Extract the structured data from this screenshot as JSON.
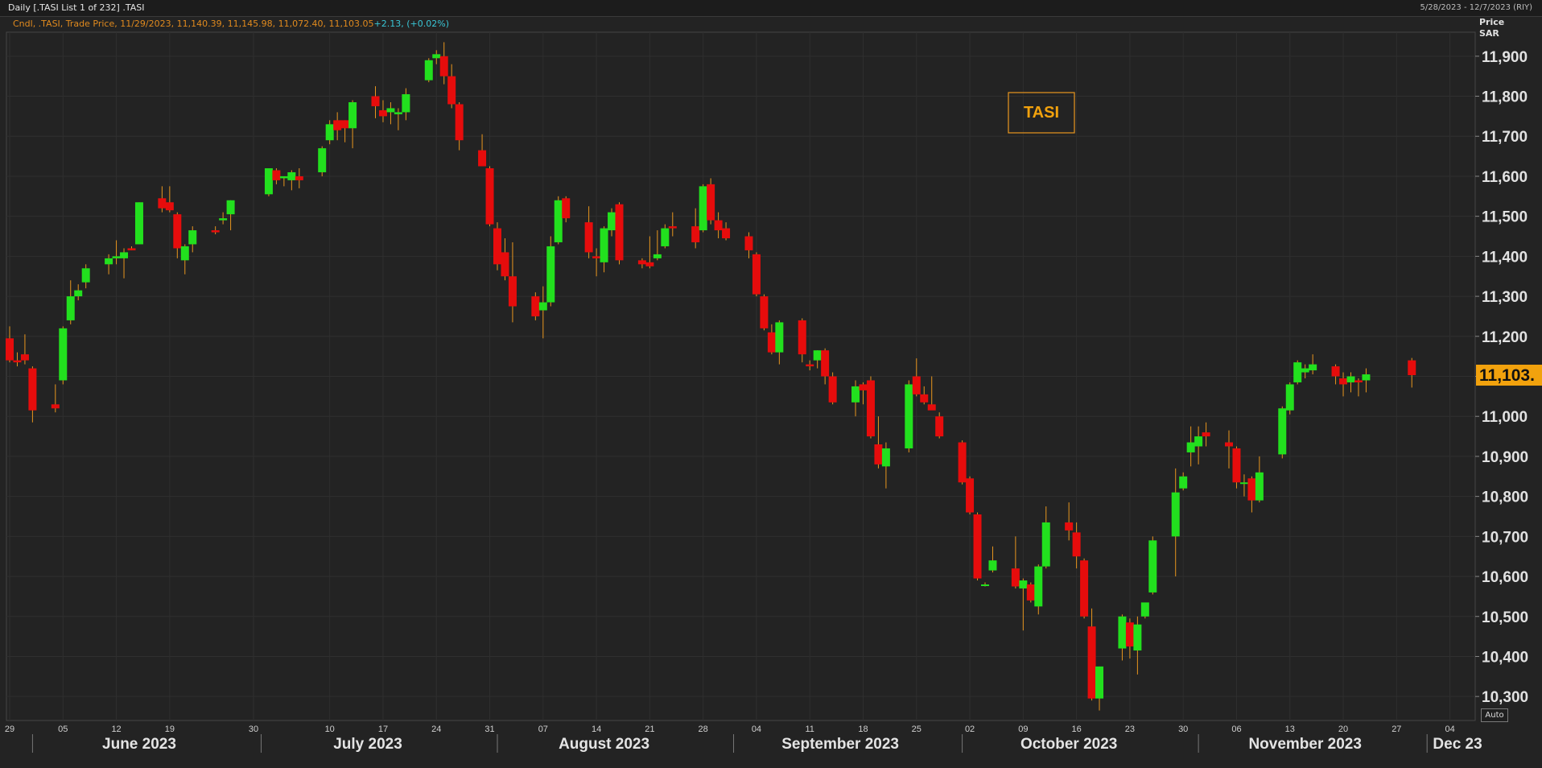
{
  "header": {
    "title": "Daily [.TASI List 1 of 232] .TASI",
    "range": "5/28/2023 - 12/7/2023 (RIY)"
  },
  "legend": {
    "text": "Cndl, .TASI, Trade Price, 11/29/2023, 11,140.39, 11,145.98, 11,072.40, 11,103.05",
    "change": "+2.13, (+0.02%)"
  },
  "yaxis": {
    "label_line1": "Price",
    "label_line2": "SAR"
  },
  "auto_label": "Auto",
  "annotation_box": "TASI",
  "last_price_label": "11,103.",
  "colors": {
    "up": "#22e01e",
    "down": "#e60c0c",
    "wick": "#e8961e",
    "last_price_bg": "#f2a20d"
  },
  "chart_data": {
    "type": "candlestick",
    "ylim": [
      10240,
      11960
    ],
    "yticks": [
      10300,
      10400,
      10500,
      10600,
      10700,
      10800,
      10900,
      11000,
      11100,
      11200,
      11300,
      11400,
      11500,
      11600,
      11700,
      11800,
      11900
    ],
    "ytick_labels": [
      "10,300",
      "10,400",
      "10,500",
      "10,600",
      "10,700",
      "10,800",
      "10,900",
      "11,000",
      "11,100",
      "11,200",
      "11,300",
      "11,400",
      "11,500",
      "11,600",
      "11,700",
      "11,800",
      "11,900"
    ],
    "date_range": [
      "2023-05-29",
      "2023-12-07"
    ],
    "xticks": [
      {
        "date": "2023-05-29",
        "label": "29"
      },
      {
        "date": "2023-06-05",
        "label": "05"
      },
      {
        "date": "2023-06-12",
        "label": "12"
      },
      {
        "date": "2023-06-19",
        "label": "19"
      },
      {
        "date": "2023-06-30",
        "label": "30"
      },
      {
        "date": "2023-07-10",
        "label": "10"
      },
      {
        "date": "2023-07-17",
        "label": "17"
      },
      {
        "date": "2023-07-24",
        "label": "24"
      },
      {
        "date": "2023-07-31",
        "label": "31"
      },
      {
        "date": "2023-08-07",
        "label": "07"
      },
      {
        "date": "2023-08-14",
        "label": "14"
      },
      {
        "date": "2023-08-21",
        "label": "21"
      },
      {
        "date": "2023-08-28",
        "label": "28"
      },
      {
        "date": "2023-09-04",
        "label": "04"
      },
      {
        "date": "2023-09-11",
        "label": "11"
      },
      {
        "date": "2023-09-18",
        "label": "18"
      },
      {
        "date": "2023-09-25",
        "label": "25"
      },
      {
        "date": "2023-10-02",
        "label": "02"
      },
      {
        "date": "2023-10-09",
        "label": "09"
      },
      {
        "date": "2023-10-16",
        "label": "16"
      },
      {
        "date": "2023-10-23",
        "label": "23"
      },
      {
        "date": "2023-10-30",
        "label": "30"
      },
      {
        "date": "2023-11-06",
        "label": "06"
      },
      {
        "date": "2023-11-13",
        "label": "13"
      },
      {
        "date": "2023-11-20",
        "label": "20"
      },
      {
        "date": "2023-11-27",
        "label": "27"
      },
      {
        "date": "2023-12-04",
        "label": "04"
      }
    ],
    "months": [
      {
        "date": "2023-06-15",
        "label": "June 2023"
      },
      {
        "date": "2023-07-15",
        "label": "July 2023"
      },
      {
        "date": "2023-08-15",
        "label": "August 2023"
      },
      {
        "date": "2023-09-15",
        "label": "September 2023"
      },
      {
        "date": "2023-10-15",
        "label": "October 2023"
      },
      {
        "date": "2023-11-15",
        "label": "November 2023"
      },
      {
        "date": "2023-12-05",
        "label": "Dec 23"
      }
    ],
    "month_separators": [
      "2023-06-01",
      "2023-07-01",
      "2023-08-01",
      "2023-09-01",
      "2023-10-01",
      "2023-11-01",
      "2023-12-01"
    ],
    "candles": [
      {
        "d": "2023-05-29",
        "o": 11195,
        "h": 11225,
        "l": 11135,
        "c": 11140
      },
      {
        "d": "2023-05-30",
        "o": 11140,
        "h": 11160,
        "l": 11125,
        "c": 11135
      },
      {
        "d": "2023-05-31",
        "o": 11155,
        "h": 11205,
        "l": 11130,
        "c": 11140
      },
      {
        "d": "2023-06-01",
        "o": 11120,
        "h": 11125,
        "l": 10985,
        "c": 11015
      },
      {
        "d": "2023-06-04",
        "o": 11030,
        "h": 11080,
        "l": 11010,
        "c": 11020
      },
      {
        "d": "2023-06-05",
        "o": 11090,
        "h": 11225,
        "l": 11080,
        "c": 11220
      },
      {
        "d": "2023-06-06",
        "o": 11240,
        "h": 11340,
        "l": 11230,
        "c": 11300
      },
      {
        "d": "2023-06-07",
        "o": 11300,
        "h": 11330,
        "l": 11290,
        "c": 11315
      },
      {
        "d": "2023-06-08",
        "o": 11335,
        "h": 11380,
        "l": 11320,
        "c": 11370
      },
      {
        "d": "2023-06-11",
        "o": 11380,
        "h": 11405,
        "l": 11355,
        "c": 11395
      },
      {
        "d": "2023-06-12",
        "o": 11395,
        "h": 11440,
        "l": 11380,
        "c": 11400
      },
      {
        "d": "2023-06-13",
        "o": 11395,
        "h": 11420,
        "l": 11345,
        "c": 11410
      },
      {
        "d": "2023-06-14",
        "o": 11420,
        "h": 11425,
        "l": 11415,
        "c": 11415
      },
      {
        "d": "2023-06-15",
        "o": 11430,
        "h": 11535,
        "l": 11430,
        "c": 11535
      },
      {
        "d": "2023-06-18",
        "o": 11545,
        "h": 11575,
        "l": 11510,
        "c": 11520
      },
      {
        "d": "2023-06-19",
        "o": 11535,
        "h": 11575,
        "l": 11510,
        "c": 11515
      },
      {
        "d": "2023-06-20",
        "o": 11505,
        "h": 11510,
        "l": 11395,
        "c": 11420
      },
      {
        "d": "2023-06-21",
        "o": 11390,
        "h": 11430,
        "l": 11355,
        "c": 11425
      },
      {
        "d": "2023-06-22",
        "o": 11430,
        "h": 11475,
        "l": 11410,
        "c": 11465
      },
      {
        "d": "2023-06-25",
        "o": 11465,
        "h": 11475,
        "l": 11455,
        "c": 11460
      },
      {
        "d": "2023-06-26",
        "o": 11490,
        "h": 11510,
        "l": 11480,
        "c": 11495
      },
      {
        "d": "2023-06-27",
        "o": 11505,
        "h": 11540,
        "l": 11465,
        "c": 11540
      },
      {
        "d": "2023-07-02",
        "o": 11555,
        "h": 11620,
        "l": 11550,
        "c": 11620
      },
      {
        "d": "2023-07-03",
        "o": 11615,
        "h": 11620,
        "l": 11580,
        "c": 11590
      },
      {
        "d": "2023-07-04",
        "o": 11595,
        "h": 11600,
        "l": 11575,
        "c": 11600
      },
      {
        "d": "2023-07-05",
        "o": 11590,
        "h": 11615,
        "l": 11565,
        "c": 11610
      },
      {
        "d": "2023-07-06",
        "o": 11600,
        "h": 11620,
        "l": 11570,
        "c": 11590
      },
      {
        "d": "2023-07-09",
        "o": 11610,
        "h": 11675,
        "l": 11600,
        "c": 11670
      },
      {
        "d": "2023-07-10",
        "o": 11690,
        "h": 11740,
        "l": 11680,
        "c": 11730
      },
      {
        "d": "2023-07-11",
        "o": 11740,
        "h": 11760,
        "l": 11690,
        "c": 11715
      },
      {
        "d": "2023-07-12",
        "o": 11740,
        "h": 11740,
        "l": 11685,
        "c": 11720
      },
      {
        "d": "2023-07-13",
        "o": 11720,
        "h": 11790,
        "l": 11670,
        "c": 11785
      },
      {
        "d": "2023-07-16",
        "o": 11800,
        "h": 11825,
        "l": 11745,
        "c": 11775
      },
      {
        "d": "2023-07-17",
        "o": 11765,
        "h": 11790,
        "l": 11735,
        "c": 11750
      },
      {
        "d": "2023-07-18",
        "o": 11760,
        "h": 11785,
        "l": 11730,
        "c": 11770
      },
      {
        "d": "2023-07-19",
        "o": 11755,
        "h": 11770,
        "l": 11715,
        "c": 11760
      },
      {
        "d": "2023-07-20",
        "o": 11760,
        "h": 11820,
        "l": 11740,
        "c": 11805
      },
      {
        "d": "2023-07-23",
        "o": 11840,
        "h": 11895,
        "l": 11835,
        "c": 11890
      },
      {
        "d": "2023-07-24",
        "o": 11895,
        "h": 11915,
        "l": 11880,
        "c": 11905
      },
      {
        "d": "2023-07-25",
        "o": 11900,
        "h": 11935,
        "l": 11830,
        "c": 11850
      },
      {
        "d": "2023-07-26",
        "o": 11850,
        "h": 11880,
        "l": 11770,
        "c": 11780
      },
      {
        "d": "2023-07-27",
        "o": 11780,
        "h": 11785,
        "l": 11665,
        "c": 11690
      },
      {
        "d": "2023-07-30",
        "o": 11665,
        "h": 11705,
        "l": 11625,
        "c": 11625
      },
      {
        "d": "2023-07-31",
        "o": 11620,
        "h": 11625,
        "l": 11475,
        "c": 11480
      },
      {
        "d": "2023-08-01",
        "o": 11470,
        "h": 11485,
        "l": 11365,
        "c": 11380
      },
      {
        "d": "2023-08-02",
        "o": 11410,
        "h": 11445,
        "l": 11340,
        "c": 11350
      },
      {
        "d": "2023-08-03",
        "o": 11350,
        "h": 11435,
        "l": 11235,
        "c": 11275
      },
      {
        "d": "2023-08-06",
        "o": 11300,
        "h": 11310,
        "l": 11240,
        "c": 11250
      },
      {
        "d": "2023-08-07",
        "o": 11265,
        "h": 11325,
        "l": 11195,
        "c": 11285
      },
      {
        "d": "2023-08-08",
        "o": 11285,
        "h": 11450,
        "l": 11275,
        "c": 11425
      },
      {
        "d": "2023-08-09",
        "o": 11435,
        "h": 11550,
        "l": 11430,
        "c": 11540
      },
      {
        "d": "2023-08-10",
        "o": 11545,
        "h": 11550,
        "l": 11485,
        "c": 11495
      },
      {
        "d": "2023-08-13",
        "o": 11485,
        "h": 11525,
        "l": 11395,
        "c": 11410
      },
      {
        "d": "2023-08-14",
        "o": 11400,
        "h": 11420,
        "l": 11350,
        "c": 11395
      },
      {
        "d": "2023-08-15",
        "o": 11385,
        "h": 11475,
        "l": 11360,
        "c": 11470
      },
      {
        "d": "2023-08-16",
        "o": 11465,
        "h": 11520,
        "l": 11450,
        "c": 11510
      },
      {
        "d": "2023-08-17",
        "o": 11530,
        "h": 11535,
        "l": 11380,
        "c": 11390
      },
      {
        "d": "2023-08-20",
        "o": 11390,
        "h": 11395,
        "l": 11370,
        "c": 11380
      },
      {
        "d": "2023-08-21",
        "o": 11385,
        "h": 11450,
        "l": 11370,
        "c": 11375
      },
      {
        "d": "2023-08-22",
        "o": 11395,
        "h": 11465,
        "l": 11390,
        "c": 11405
      },
      {
        "d": "2023-08-23",
        "o": 11425,
        "h": 11480,
        "l": 11420,
        "c": 11470
      },
      {
        "d": "2023-08-24",
        "o": 11475,
        "h": 11510,
        "l": 11450,
        "c": 11470
      },
      {
        "d": "2023-08-27",
        "o": 11475,
        "h": 11520,
        "l": 11420,
        "c": 11435
      },
      {
        "d": "2023-08-28",
        "o": 11465,
        "h": 11580,
        "l": 11460,
        "c": 11575
      },
      {
        "d": "2023-08-29",
        "o": 11580,
        "h": 11595,
        "l": 11480,
        "c": 11490
      },
      {
        "d": "2023-08-30",
        "o": 11490,
        "h": 11510,
        "l": 11445,
        "c": 11465
      },
      {
        "d": "2023-08-31",
        "o": 11470,
        "h": 11485,
        "l": 11440,
        "c": 11445
      },
      {
        "d": "2023-09-03",
        "o": 11450,
        "h": 11460,
        "l": 11395,
        "c": 11415
      },
      {
        "d": "2023-09-04",
        "o": 11405,
        "h": 11410,
        "l": 11300,
        "c": 11305
      },
      {
        "d": "2023-09-05",
        "o": 11300,
        "h": 11305,
        "l": 11215,
        "c": 11220
      },
      {
        "d": "2023-09-06",
        "o": 11210,
        "h": 11230,
        "l": 11155,
        "c": 11160
      },
      {
        "d": "2023-09-07",
        "o": 11160,
        "h": 11240,
        "l": 11130,
        "c": 11235
      },
      {
        "d": "2023-09-10",
        "o": 11240,
        "h": 11245,
        "l": 11135,
        "c": 11155
      },
      {
        "d": "2023-09-11",
        "o": 11130,
        "h": 11140,
        "l": 11115,
        "c": 11125
      },
      {
        "d": "2023-09-12",
        "o": 11140,
        "h": 11165,
        "l": 11120,
        "c": 11165
      },
      {
        "d": "2023-09-13",
        "o": 11165,
        "h": 11170,
        "l": 11080,
        "c": 11100
      },
      {
        "d": "2023-09-14",
        "o": 11100,
        "h": 11110,
        "l": 11030,
        "c": 11035
      },
      {
        "d": "2023-09-17",
        "o": 11035,
        "h": 11090,
        "l": 11000,
        "c": 11075
      },
      {
        "d": "2023-09-18",
        "o": 11080,
        "h": 11085,
        "l": 11030,
        "c": 11065
      },
      {
        "d": "2023-09-19",
        "o": 11090,
        "h": 11100,
        "l": 10945,
        "c": 10950
      },
      {
        "d": "2023-09-20",
        "o": 10930,
        "h": 11000,
        "l": 10870,
        "c": 10880
      },
      {
        "d": "2023-09-21",
        "o": 10875,
        "h": 10935,
        "l": 10820,
        "c": 10920
      },
      {
        "d": "2023-09-24",
        "o": 10920,
        "h": 11090,
        "l": 10910,
        "c": 11080
      },
      {
        "d": "2023-09-25",
        "o": 11100,
        "h": 11145,
        "l": 11050,
        "c": 11055
      },
      {
        "d": "2023-09-26",
        "o": 11055,
        "h": 11075,
        "l": 11030,
        "c": 11035
      },
      {
        "d": "2023-09-27",
        "o": 11030,
        "h": 11100,
        "l": 11020,
        "c": 11015
      },
      {
        "d": "2023-09-28",
        "o": 11000,
        "h": 11010,
        "l": 10945,
        "c": 10950
      },
      {
        "d": "2023-10-01",
        "o": 10935,
        "h": 10940,
        "l": 10830,
        "c": 10835
      },
      {
        "d": "2023-10-02",
        "o": 10845,
        "h": 10850,
        "l": 10755,
        "c": 10760
      },
      {
        "d": "2023-10-03",
        "o": 10755,
        "h": 10760,
        "l": 10590,
        "c": 10595
      },
      {
        "d": "2023-10-04",
        "o": 10580,
        "h": 10585,
        "l": 10575,
        "c": 10580
      },
      {
        "d": "2023-10-05",
        "o": 10615,
        "h": 10675,
        "l": 10610,
        "c": 10640
      },
      {
        "d": "2023-10-08",
        "o": 10620,
        "h": 10700,
        "l": 10570,
        "c": 10575
      },
      {
        "d": "2023-10-09",
        "o": 10570,
        "h": 10595,
        "l": 10465,
        "c": 10590
      },
      {
        "d": "2023-10-10",
        "o": 10580,
        "h": 10585,
        "l": 10535,
        "c": 10540
      },
      {
        "d": "2023-10-11",
        "o": 10525,
        "h": 10630,
        "l": 10505,
        "c": 10625
      },
      {
        "d": "2023-10-12",
        "o": 10625,
        "h": 10775,
        "l": 10620,
        "c": 10735
      },
      {
        "d": "2023-10-15",
        "o": 10735,
        "h": 10785,
        "l": 10690,
        "c": 10715
      },
      {
        "d": "2023-10-16",
        "o": 10710,
        "h": 10735,
        "l": 10620,
        "c": 10650
      },
      {
        "d": "2023-10-17",
        "o": 10640,
        "h": 10645,
        "l": 10495,
        "c": 10500
      },
      {
        "d": "2023-10-18",
        "o": 10475,
        "h": 10520,
        "l": 10290,
        "c": 10295
      },
      {
        "d": "2023-10-19",
        "o": 10295,
        "h": 10375,
        "l": 10265,
        "c": 10375
      },
      {
        "d": "2023-10-22",
        "o": 10420,
        "h": 10505,
        "l": 10390,
        "c": 10500
      },
      {
        "d": "2023-10-23",
        "o": 10485,
        "h": 10495,
        "l": 10395,
        "c": 10425
      },
      {
        "d": "2023-10-24",
        "o": 10415,
        "h": 10500,
        "l": 10355,
        "c": 10480
      },
      {
        "d": "2023-10-25",
        "o": 10500,
        "h": 10520,
        "l": 10495,
        "c": 10535
      },
      {
        "d": "2023-10-26",
        "o": 10560,
        "h": 10700,
        "l": 10555,
        "c": 10690
      },
      {
        "d": "2023-10-29",
        "o": 10700,
        "h": 10870,
        "l": 10600,
        "c": 10810
      },
      {
        "d": "2023-10-30",
        "o": 10820,
        "h": 10860,
        "l": 10815,
        "c": 10850
      },
      {
        "d": "2023-10-31",
        "o": 10910,
        "h": 10975,
        "l": 10875,
        "c": 10935
      },
      {
        "d": "2023-11-01",
        "o": 10925,
        "h": 10975,
        "l": 10880,
        "c": 10950
      },
      {
        "d": "2023-11-02",
        "o": 10960,
        "h": 10985,
        "l": 10925,
        "c": 10950
      },
      {
        "d": "2023-11-05",
        "o": 10935,
        "h": 10965,
        "l": 10870,
        "c": 10925
      },
      {
        "d": "2023-11-06",
        "o": 10920,
        "h": 10925,
        "l": 10820,
        "c": 10835
      },
      {
        "d": "2023-11-07",
        "o": 10835,
        "h": 10855,
        "l": 10800,
        "c": 10835
      },
      {
        "d": "2023-11-08",
        "o": 10845,
        "h": 10850,
        "l": 10760,
        "c": 10790
      },
      {
        "d": "2023-11-09",
        "o": 10790,
        "h": 10900,
        "l": 10785,
        "c": 10860
      },
      {
        "d": "2023-11-12",
        "o": 10905,
        "h": 11025,
        "l": 10895,
        "c": 11020
      },
      {
        "d": "2023-11-13",
        "o": 11015,
        "h": 11085,
        "l": 11005,
        "c": 11080
      },
      {
        "d": "2023-11-14",
        "o": 11085,
        "h": 11140,
        "l": 11080,
        "c": 11135
      },
      {
        "d": "2023-11-15",
        "o": 11110,
        "h": 11130,
        "l": 11095,
        "c": 11120
      },
      {
        "d": "2023-11-16",
        "o": 11115,
        "h": 11155,
        "l": 11105,
        "c": 11130
      },
      {
        "d": "2023-11-19",
        "o": 11125,
        "h": 11130,
        "l": 11080,
        "c": 11100
      },
      {
        "d": "2023-11-20",
        "o": 11095,
        "h": 11110,
        "l": 11050,
        "c": 11080
      },
      {
        "d": "2023-11-21",
        "o": 11085,
        "h": 11110,
        "l": 11060,
        "c": 11100
      },
      {
        "d": "2023-11-22",
        "o": 11090,
        "h": 11095,
        "l": 11050,
        "c": 11085
      },
      {
        "d": "2023-11-23",
        "o": 11090,
        "h": 11120,
        "l": 11060,
        "c": 11105
      },
      {
        "d": "2023-11-29",
        "o": 11140,
        "h": 11146,
        "l": 11072,
        "c": 11103
      }
    ]
  }
}
